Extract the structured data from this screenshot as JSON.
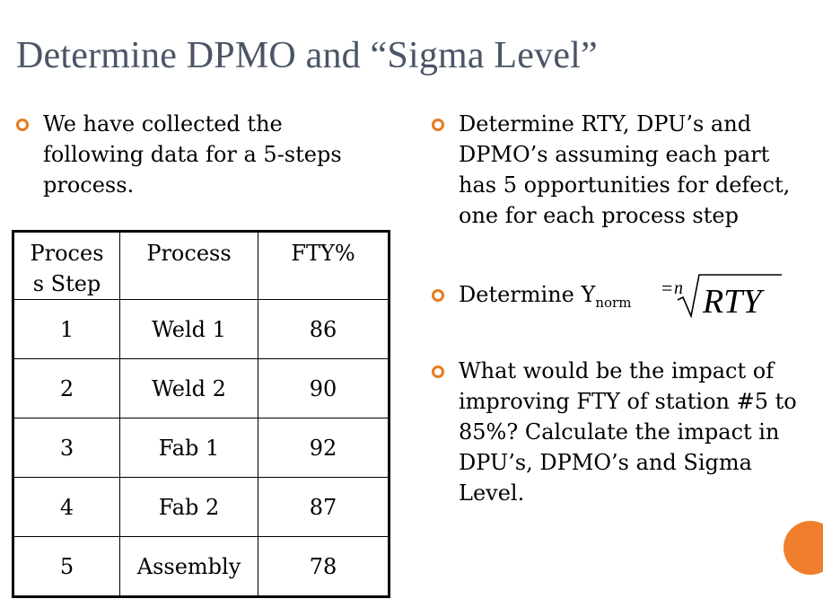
{
  "slide": {
    "title": "Determine DPMO and “Sigma Level”"
  },
  "left_bullet": {
    "lines": [
      "We have collected the",
      "following data for a 5-steps",
      "process."
    ]
  },
  "table": {
    "headers": [
      [
        "Proces",
        "s Step"
      ],
      [
        "Process"
      ],
      [
        "FTY%"
      ]
    ],
    "rows": [
      {
        "step": "1",
        "process": "Weld 1",
        "fty": "86"
      },
      {
        "step": "2",
        "process": "Weld 2",
        "fty": "90"
      },
      {
        "step": "3",
        "process": "Fab 1",
        "fty": "92"
      },
      {
        "step": "4",
        "process": "Fab 2",
        "fty": "87"
      },
      {
        "step": "5",
        "process": "Assembly",
        "fty": "78"
      }
    ]
  },
  "right_bullets": [
    {
      "lines": [
        "Determine RTY, DPU’s and",
        "DPMO’s  assuming each part",
        "has 5 opportunities for defect,",
        "one for each process step"
      ]
    },
    {
      "prefix": "Determine Y",
      "subscript": "norm",
      "formula_eq": "=",
      "formula_index": "n",
      "formula_radicand": "RTY"
    },
    {
      "lines": [
        "What would be the impact of",
        "improving FTY of station #5 to",
        "85%? Calculate the impact in",
        "DPU’s, DPMO’s and Sigma",
        "Level."
      ]
    }
  ],
  "colors": {
    "title": "#4a5566",
    "bullet": "#e87a1e",
    "accent_circle": "#f07f2d"
  }
}
